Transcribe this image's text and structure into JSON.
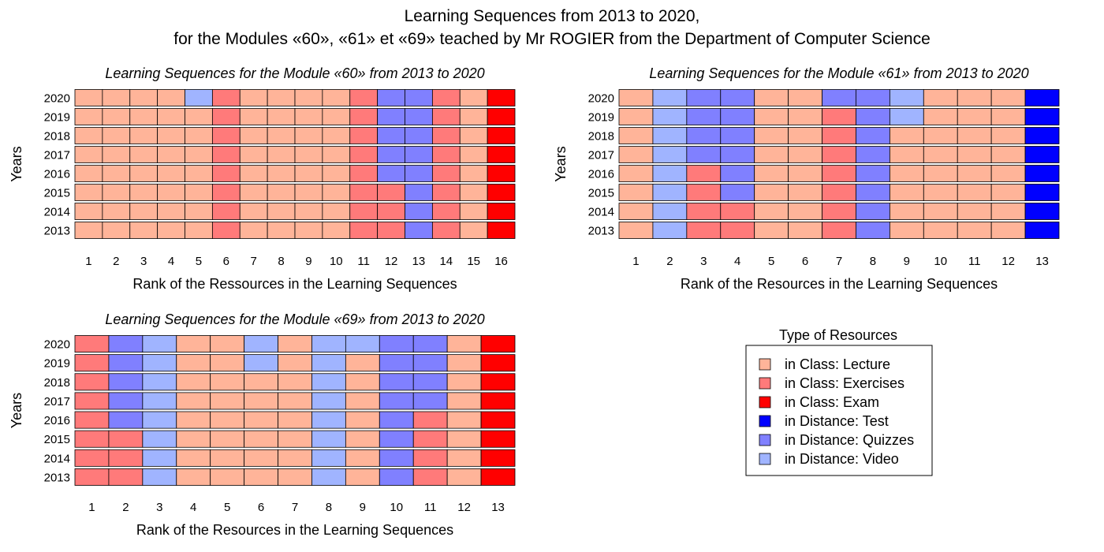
{
  "figure": {
    "title_line1": "Learning Sequences from 2013 to 2020,",
    "title_line2": "for the Modules «60», «61» et «69» teached by Mr ROGIER from the Department of Computer Science"
  },
  "legend": {
    "title": "Type of Resources",
    "placement": "bottom-right",
    "items": [
      {
        "key": "L",
        "label": "in Class: Lecture",
        "color": "#FFB499"
      },
      {
        "key": "E",
        "label": "in Class: Exercises",
        "color": "#FF7A7A"
      },
      {
        "key": "X",
        "label": "in Class: Exam",
        "color": "#FF0000"
      },
      {
        "key": "T",
        "label": "in Distance: Test",
        "color": "#0000FF"
      },
      {
        "key": "Q",
        "label": "in Distance: Quizzes",
        "color": "#8080FF"
      },
      {
        "key": "V",
        "label": "in Distance: Video",
        "color": "#A0B4FF"
      }
    ]
  },
  "chart_data": [
    {
      "type": "heatmap",
      "title": "Learning Sequences for the Module «60» from 2013 to 2020",
      "xlabel": "Rank of the Ressources in the Learning Sequences",
      "ylabel": "Years",
      "x_ticks": [
        "1",
        "2",
        "3",
        "4",
        "5",
        "6",
        "7",
        "8",
        "9",
        "10",
        "11",
        "12",
        "13",
        "14",
        "15",
        "16"
      ],
      "y_ticks": [
        "2020",
        "2019",
        "2018",
        "2017",
        "2016",
        "2015",
        "2014",
        "2013"
      ],
      "rows": [
        "LLLLVELLLLEQQELX",
        "LLLLLELLLLEQQELX",
        "LLLLLELLLLEQQELX",
        "LLLLLELLLLEQQELX",
        "LLLLLELLLLEQQELX",
        "LLLLLELLLLEEQELX",
        "LLLLLELLLLEEQELX",
        "LLLLLELLLLEEQELX"
      ]
    },
    {
      "type": "heatmap",
      "title": "Learning Sequences for the Module «61» from 2013 to 2020",
      "xlabel": "Rank of the Resources in the Learning Sequences",
      "ylabel": "Years",
      "x_ticks": [
        "1",
        "2",
        "3",
        "4",
        "5",
        "6",
        "7",
        "8",
        "9",
        "10",
        "11",
        "12",
        "13"
      ],
      "y_ticks": [
        "2020",
        "2019",
        "2018",
        "2017",
        "2016",
        "2015",
        "2014",
        "2013"
      ],
      "rows": [
        "LVQQLLQQVLLLT",
        "LVQQLLEQVLLLT",
        "LVQQLLEQLLLLT",
        "LVQQLLEQLLLLT",
        "LVEQLLEQLLLLT",
        "LVEQLLEQLLLLT",
        "LVEELLEQLLLLT",
        "LVEELLEQLLLLT"
      ]
    },
    {
      "type": "heatmap",
      "title": "Learning Sequences for the Module «69» from 2013 to 2020",
      "xlabel": "Rank of the Resources in the Learning Sequences",
      "ylabel": "Years",
      "x_ticks": [
        "1",
        "2",
        "3",
        "4",
        "5",
        "6",
        "7",
        "8",
        "9",
        "10",
        "11",
        "12",
        "13"
      ],
      "y_ticks": [
        "2020",
        "2019",
        "2018",
        "2017",
        "2016",
        "2015",
        "2014",
        "2013"
      ],
      "rows": [
        "EQVLLVLVVQQLX",
        "EQVLLVLVLQQLX",
        "EQVLLLLVLQQLX",
        "EQVLLLLVLQQLX",
        "EQVLLLLVLQELX",
        "EEVLLLLVLQELX",
        "EEVLLLLVLQELX",
        "EEVLLLLVLQELX"
      ]
    }
  ]
}
